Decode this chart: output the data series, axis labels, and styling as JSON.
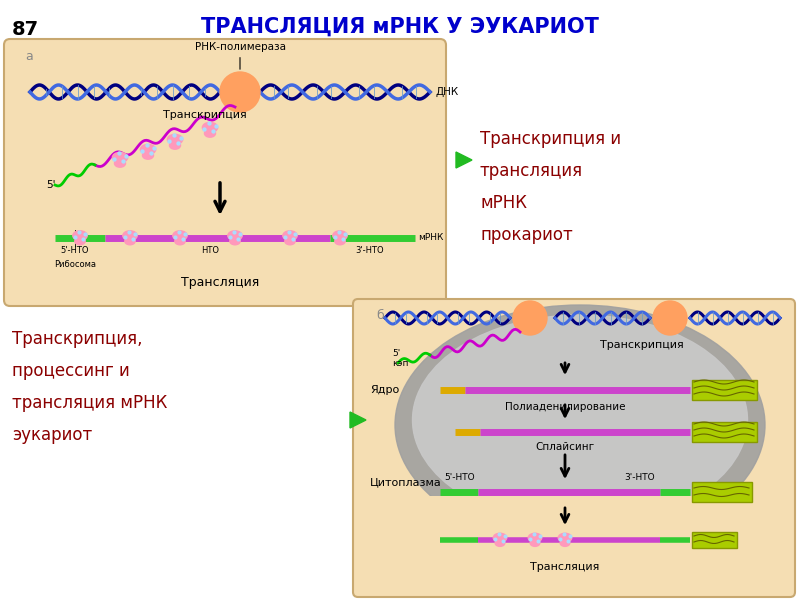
{
  "title": "ТРАНСЛЯЦИЯ мРНК У ЭУКАРИОТ",
  "title_color": "#0000CC",
  "page_num": "87",
  "bg_color": "#FFFFFF",
  "panel_a_bg": "#F5DEB3",
  "panel_b_bg": "#F5DEB3",
  "nucleus_outer_color": "#A0A0A0",
  "nucleus_inner_color": "#C8C8C8",
  "text_color_red": "#8B0000",
  "dna_color1": "#000080",
  "dna_color2": "#4169E1",
  "mrna_purple": "#CC00CC",
  "mrna_green": "#00BB00",
  "ribosome_color": "#FF99BB",
  "rna_pol_color": "#FFA060",
  "purple_bar": "#CC44CC",
  "green_bar": "#33CC33",
  "yellow_bar": "#CCCC00",
  "right_text1": "Транскрипция и\nтрансляция\nмРНК\nпрокариот",
  "right_text2": "Транскрипция,\nпроцессинг и\nтрансляция мРНК\nэукариот",
  "label_a_transcription": "Транскрипция",
  "label_a_translation": "Трансляция",
  "label_a_ribosome": "Рибосома",
  "label_a_rnk_pol": "РНК-полимераза",
  "label_a_dnk": "ДНК",
  "label_a_mrna": "мРНК",
  "label_a_5": "5'",
  "label_a_5nto": "5'-НТО",
  "label_a_nto": "НТО",
  "label_a_3nto": "3'-НТО",
  "label_b_5": "5'",
  "label_b_cap": "кэп",
  "label_b_transcription": "Транскрипция",
  "label_b_nucleus": "Ядро",
  "label_b_cytoplasm": "Цитоплазма",
  "label_b_polyadenilation": "Полиаденилирование",
  "label_b_splicing": "Сплайсинг",
  "label_b_5nto": "5'-НТО",
  "label_b_3nto": "3'-НТО",
  "label_b_translation": "Трансляция",
  "label_b": "б",
  "label_a": "а"
}
